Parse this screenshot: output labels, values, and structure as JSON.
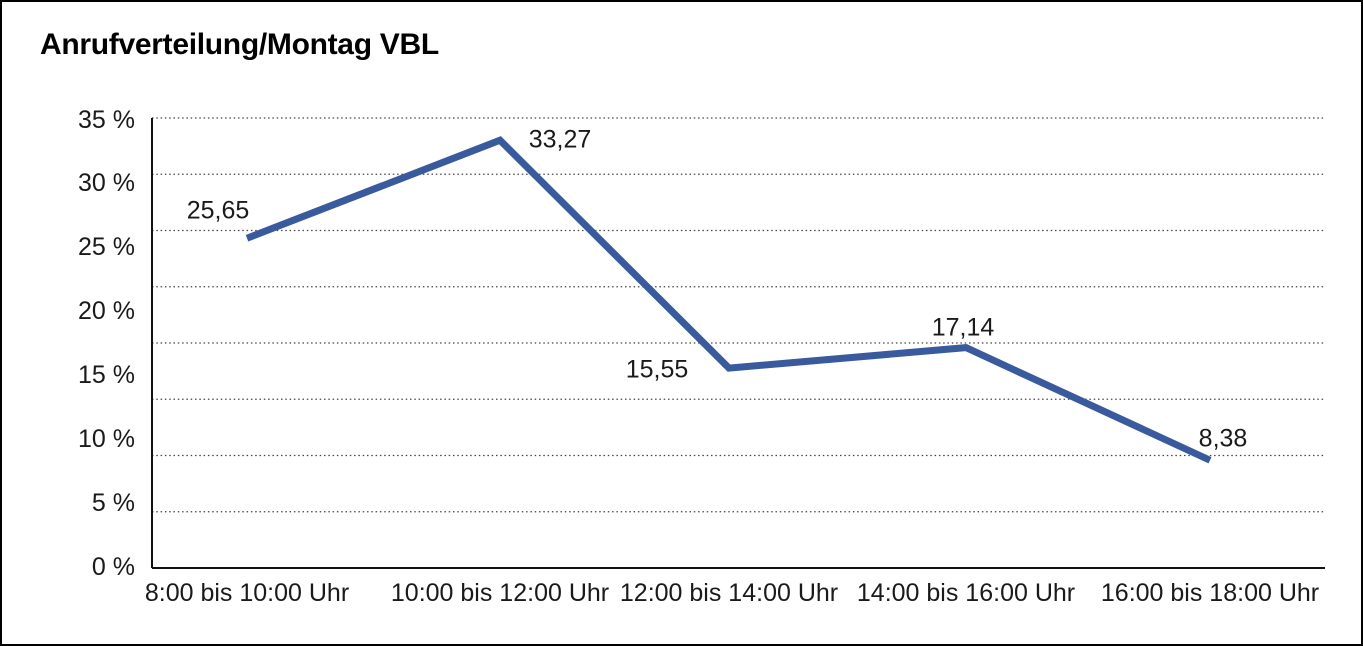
{
  "chart_data": {
    "type": "line",
    "title": "Anrufverteilung/Montag VBL",
    "categories": [
      "8:00 bis 10:00 Uhr",
      "10:00 bis 12:00 Uhr",
      "12:00 bis 14:00 Uhr",
      "14:00 bis 16:00 Uhr",
      "16:00 bis 18:00 Uhr"
    ],
    "values": [
      25.65,
      33.27,
      15.55,
      17.14,
      8.38
    ],
    "point_labels": [
      "25,65",
      "33,27",
      "15,55",
      "17,14",
      "8,38"
    ],
    "y_tick_labels": [
      "35 %",
      "30 %",
      "25 %",
      "20 %",
      "15 %",
      "10 %",
      "5 %",
      "0 %"
    ],
    "ylim": [
      0,
      35
    ],
    "ytick_step": 5,
    "xlabel": "",
    "ylabel": "",
    "grid": "horizontal dotted",
    "legend": "none",
    "line_color": "#3A5A9E",
    "axis_color": "#111111",
    "gridline_color": "#444444",
    "text_color": "#1a1a1a"
  }
}
